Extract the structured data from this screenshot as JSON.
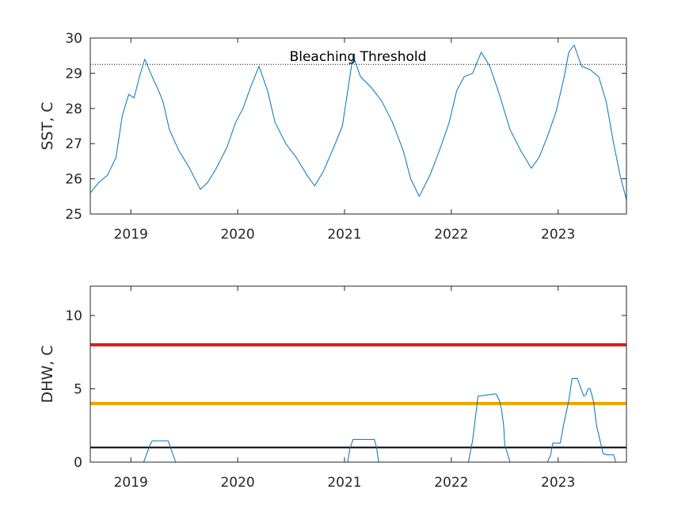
{
  "chart_data": [
    {
      "type": "line",
      "ylabel": "SST, C",
      "xlim": [
        2018.62,
        2023.64
      ],
      "ylim": [
        25,
        30
      ],
      "xticks": [
        2019,
        2020,
        2021,
        2022,
        2023
      ],
      "xtick_labels": [
        "2019",
        "2020",
        "2021",
        "2022",
        "2023"
      ],
      "yticks": [
        25,
        26,
        27,
        28,
        29,
        30
      ],
      "ytick_labels": [
        "25",
        "26",
        "27",
        "28",
        "29",
        "30"
      ],
      "series_color": "#0072bd",
      "threshold": {
        "label": "Bleaching Threshold",
        "value": 29.25,
        "style": "dotted"
      },
      "x": [
        2018.62,
        2018.7,
        2018.78,
        2018.86,
        2018.92,
        2018.98,
        2019.03,
        2019.08,
        2019.13,
        2019.2,
        2019.26,
        2019.3,
        2019.36,
        2019.45,
        2019.55,
        2019.65,
        2019.72,
        2019.8,
        2019.9,
        2019.98,
        2020.05,
        2020.12,
        2020.2,
        2020.28,
        2020.35,
        2020.45,
        2020.55,
        2020.65,
        2020.72,
        2020.8,
        2020.9,
        2020.98,
        2021.03,
        2021.08,
        2021.15,
        2021.25,
        2021.35,
        2021.45,
        2021.55,
        2021.62,
        2021.7,
        2021.8,
        2021.9,
        2021.98,
        2022.05,
        2022.12,
        2022.2,
        2022.28,
        2022.36,
        2022.45,
        2022.55,
        2022.65,
        2022.75,
        2022.82,
        2022.9,
        2022.98,
        2023.05,
        2023.1,
        2023.15,
        2023.22,
        2023.3,
        2023.38,
        2023.45,
        2023.52,
        2023.58,
        2023.64
      ],
      "y": [
        25.6,
        25.9,
        26.1,
        26.6,
        27.8,
        28.4,
        28.3,
        28.9,
        29.4,
        28.9,
        28.5,
        28.2,
        27.4,
        26.8,
        26.3,
        25.7,
        25.9,
        26.3,
        26.9,
        27.6,
        28.0,
        28.6,
        29.2,
        28.5,
        27.6,
        27.0,
        26.6,
        26.1,
        25.8,
        26.2,
        26.9,
        27.5,
        28.5,
        29.5,
        28.9,
        28.6,
        28.2,
        27.6,
        26.8,
        26.0,
        25.5,
        26.1,
        26.9,
        27.6,
        28.5,
        28.9,
        29.0,
        29.6,
        29.2,
        28.4,
        27.4,
        26.8,
        26.3,
        26.6,
        27.2,
        27.9,
        28.8,
        29.6,
        29.8,
        29.2,
        29.1,
        28.9,
        28.2,
        27.0,
        26.1,
        25.4
      ]
    },
    {
      "type": "line",
      "ylabel": "DHW, C",
      "xlim": [
        2018.62,
        2023.64
      ],
      "ylim": [
        0,
        12
      ],
      "xticks": [
        2019,
        2020,
        2021,
        2022,
        2023
      ],
      "xtick_labels": [
        "2019",
        "2020",
        "2021",
        "2022",
        "2023"
      ],
      "yticks": [
        0,
        5,
        10
      ],
      "ytick_labels": [
        "0",
        "5",
        "10"
      ],
      "series_color": "#0072bd",
      "reference_lines": [
        {
          "value": 8,
          "color": "#e41a1c"
        },
        {
          "value": 4,
          "color": "#f5a300"
        },
        {
          "value": 1,
          "color": "#000000"
        }
      ],
      "x": [
        2018.62,
        2019.12,
        2019.15,
        2019.18,
        2019.2,
        2019.3,
        2019.35,
        2019.38,
        2019.42,
        2021.03,
        2021.05,
        2021.08,
        2021.28,
        2021.3,
        2021.32,
        2022.16,
        2022.2,
        2022.23,
        2022.25,
        2022.3,
        2022.4,
        2022.42,
        2022.45,
        2022.47,
        2022.49,
        2022.5,
        2022.55,
        2022.9,
        2022.93,
        2022.95,
        2023.02,
        2023.05,
        2023.1,
        2023.13,
        2023.18,
        2023.22,
        2023.24,
        2023.26,
        2023.28,
        2023.3,
        2023.33,
        2023.36,
        2023.42,
        2023.45,
        2023.52,
        2023.54,
        2023.64
      ],
      "y": [
        0,
        0,
        0.6,
        1.2,
        1.45,
        1.45,
        1.45,
        0.8,
        0,
        0,
        0.9,
        1.55,
        1.55,
        1.0,
        0,
        0,
        1.5,
        3.3,
        4.5,
        4.55,
        4.65,
        4.65,
        4.2,
        3.6,
        2.5,
        1.2,
        0,
        0,
        0.5,
        1.3,
        1.3,
        2.5,
        4.2,
        5.7,
        5.7,
        4.9,
        4.5,
        4.6,
        5.0,
        5.0,
        4.2,
        2.5,
        0.6,
        0.5,
        0.5,
        0,
        0
      ]
    }
  ]
}
